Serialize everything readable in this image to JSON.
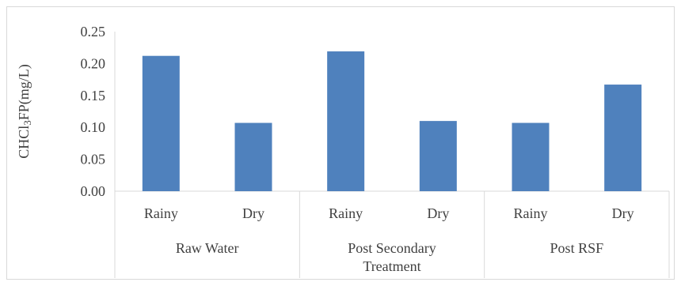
{
  "chart_data": {
    "type": "bar",
    "ylabel_parts": [
      "CHCl",
      "3",
      "FP(mg/L)"
    ],
    "ylim": [
      0,
      0.25
    ],
    "yticks": [
      "0.00",
      "0.05",
      "0.10",
      "0.15",
      "0.20",
      "0.25"
    ],
    "ytick_values": [
      0,
      0.05,
      0.1,
      0.15,
      0.2,
      0.25
    ],
    "grid": false,
    "bar_color": "#4f81bd",
    "groups": [
      {
        "label_lines": [
          "Raw Water"
        ],
        "categories": [
          "Rainy",
          "Dry"
        ]
      },
      {
        "label_lines": [
          "Post Secondary",
          "Treatment"
        ],
        "categories": [
          "Rainy",
          "Dry"
        ]
      },
      {
        "label_lines": [
          "Post RSF"
        ],
        "categories": [
          "Rainy",
          "Dry"
        ]
      }
    ],
    "values": [
      0.212,
      0.107,
      0.219,
      0.11,
      0.107,
      0.167
    ]
  }
}
